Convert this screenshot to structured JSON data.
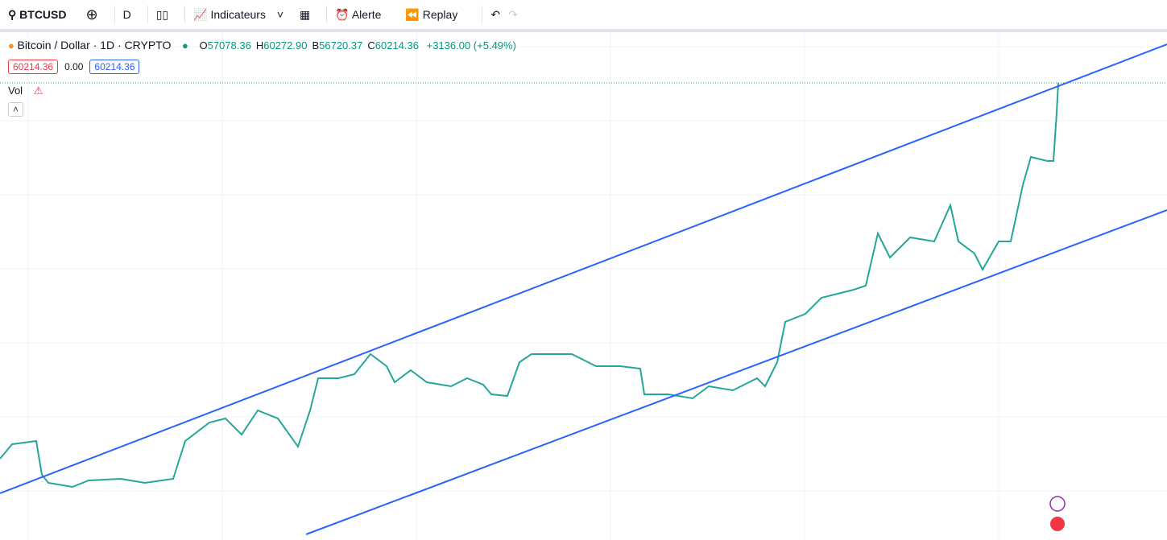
{
  "toolbar": {
    "symbol": "BTCUSD",
    "interval": "D",
    "indicators": "Indicateurs",
    "alert": "Alerte",
    "replay": "Replay"
  },
  "legend": {
    "title": "Bitcoin / Dollar · 1D · CRYPTO",
    "ohlc": [
      {
        "key": "O",
        "value": "57078.36"
      },
      {
        "key": "H",
        "value": "60272.90"
      },
      {
        "key": "B",
        "value": "56720.37"
      },
      {
        "key": "C",
        "value": "60214.36"
      }
    ],
    "change": "+3136.00 (+5.49%)",
    "bid": "60214.36",
    "spread": "0.00",
    "ask": "60214.36",
    "vol": "Vol"
  }
}
